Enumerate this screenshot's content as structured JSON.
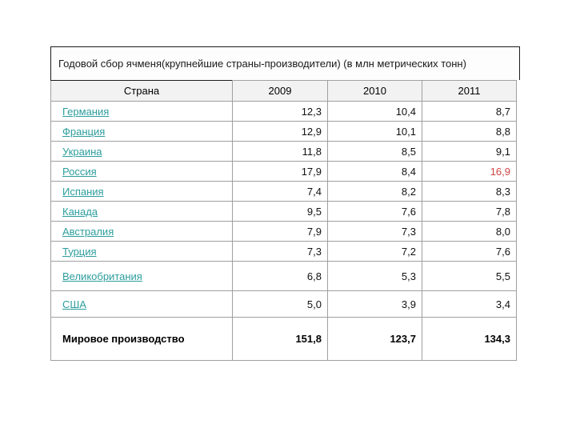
{
  "title": "Годовой сбор ячменя(крупнейшие страны-производители) (в млн метрических тонн)",
  "colors": {
    "link": "#2d9d9d",
    "highlight_value": "#cf4444",
    "table_border": "#a0a0a0",
    "header_background": "#f2f2f2",
    "title_border": "#1c1c1c"
  },
  "chart_data": {
    "type": "table",
    "title": "Годовой сбор ячменя(крупнейшие страны-производители) (в млн метрических тонн)",
    "columns": [
      "Страна",
      "2009",
      "2010",
      "2011"
    ],
    "rows": [
      {
        "country": "Германия",
        "link": true,
        "values": [
          "12,3",
          "10,4",
          "8,7"
        ]
      },
      {
        "country": "Франция",
        "link": true,
        "values": [
          "12,9",
          "10,1",
          "8,8"
        ]
      },
      {
        "country": "Украина",
        "link": true,
        "values": [
          "11,8",
          "8,5",
          "9,1"
        ]
      },
      {
        "country": "Россия",
        "link": true,
        "values": [
          "17,9",
          "8,4",
          "16,9"
        ],
        "red_index": 2
      },
      {
        "country": "Испания",
        "link": true,
        "values": [
          "7,4",
          "8,2",
          "8,3"
        ]
      },
      {
        "country": "Канада",
        "link": true,
        "values": [
          "9,5",
          "7,6",
          "7,8"
        ]
      },
      {
        "country": "Австралия",
        "link": true,
        "values": [
          "7,9",
          "7,3",
          "8,0"
        ]
      },
      {
        "country": "Турция",
        "link": true,
        "values": [
          "7,3",
          "7,2",
          "7,6"
        ]
      },
      {
        "country": "Великобритания",
        "link": true,
        "values": [
          "6,8",
          "5,3",
          "5,5"
        ]
      },
      {
        "country": "США",
        "link": true,
        "values": [
          "5,0",
          "3,9",
          "3,4"
        ]
      },
      {
        "country": "Мировое производство",
        "link": false,
        "is_total": true,
        "values": [
          "151,8",
          "123,7",
          "134,3"
        ]
      }
    ]
  }
}
